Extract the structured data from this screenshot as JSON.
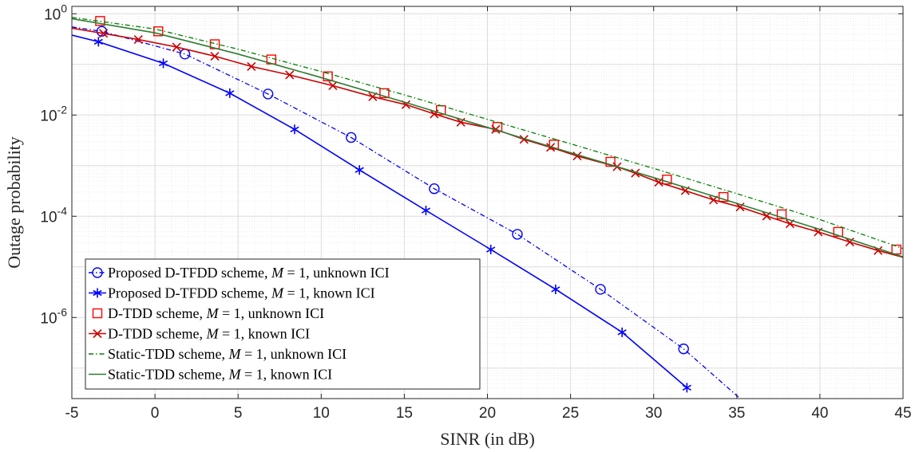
{
  "chart_data": {
    "type": "line",
    "title": "",
    "xlabel": "SINR (in dB)",
    "ylabel": "Outage probability",
    "xlim": [
      -5,
      45
    ],
    "ylim": [
      2.5e-08,
      1.4
    ],
    "yscale": "log",
    "grid": true,
    "minor_grid": true,
    "legend_position": "bottom-left",
    "x_ticks": [
      -5,
      0,
      5,
      10,
      15,
      20,
      25,
      30,
      35,
      40,
      45
    ],
    "x_tick_labels": [
      "-5",
      "0",
      "5",
      "10",
      "15",
      "20",
      "25",
      "30",
      "35",
      "40",
      "45"
    ],
    "y_ticks": [
      {
        "value": 1,
        "base": "10",
        "exp": "0"
      },
      {
        "value": 0.01,
        "base": "10",
        "exp": "-2"
      },
      {
        "value": 0.0001,
        "base": "10",
        "exp": "-4"
      },
      {
        "value": 1e-06,
        "base": "10",
        "exp": "-6"
      }
    ],
    "series": [
      {
        "name": "Proposed D-TFDD scheme, M = 1, unknown ICI",
        "legend_prefix": "Proposed D-TFDD scheme, ",
        "legend_suffix": " = 1, unknown ICI",
        "color": "#0000ff",
        "line_style": "dashdot",
        "marker": "circle",
        "x": [
          -5,
          -3.2,
          1.8,
          6.8,
          11.8,
          16.8,
          21.8,
          26.8,
          31.8,
          35.2
        ],
        "y": [
          0.55,
          0.45,
          0.16,
          0.026,
          0.0036,
          0.00035,
          4.4e-05,
          3.6e-06,
          2.4e-07,
          2.5e-08
        ],
        "marker_x": [
          -3.2,
          1.8,
          6.8,
          11.8,
          16.8,
          21.8,
          26.8,
          31.8
        ]
      },
      {
        "name": "Proposed D-TFDD scheme, M = 1, known ICI",
        "legend_prefix": "Proposed D-TFDD scheme, ",
        "legend_suffix": " = 1, known ICI",
        "color": "#0000ff",
        "line_style": "solid",
        "marker": "asterisk",
        "x": [
          -5,
          -3.4,
          0.5,
          4.5,
          8.4,
          12.3,
          16.3,
          20.2,
          24.1,
          28.1,
          32
        ],
        "y": [
          0.38,
          0.28,
          0.105,
          0.027,
          0.0052,
          0.00082,
          0.00013,
          2.2e-05,
          3.6e-06,
          5.1e-07,
          4.1e-08
        ],
        "marker_x": [
          -3.4,
          0.5,
          4.5,
          8.4,
          12.3,
          16.3,
          20.2,
          24.1,
          28.1,
          32
        ]
      },
      {
        "name": "D-TDD scheme, M = 1, unknown ICI",
        "legend_prefix": "D-TDD scheme, ",
        "legend_suffix": " = 1, unknown ICI",
        "color": "#ff0000",
        "line_style": "none",
        "marker": "square",
        "x": [
          -3.3,
          0.2,
          3.6,
          7.0,
          10.4,
          13.8,
          17.2,
          20.6,
          24.0,
          27.4,
          30.8,
          34.2,
          37.7,
          41.1,
          44.6
        ],
        "y": [
          0.72,
          0.45,
          0.25,
          0.125,
          0.058,
          0.027,
          0.0125,
          0.0058,
          0.0026,
          0.00119,
          0.00053,
          0.00024,
          0.000109,
          4.9e-05,
          2.2e-05
        ]
      },
      {
        "name": "D-TDD scheme, M = 1, known ICI",
        "legend_prefix": "D-TDD scheme, ",
        "legend_suffix": " = 1, known ICI",
        "color": "#cc0000",
        "line_style": "solid",
        "marker": "x",
        "x": [
          -5,
          -3.1,
          -1.0,
          1.3,
          3.6,
          5.8,
          8.1,
          10.7,
          13.1,
          15.1,
          16.8,
          18.4,
          20.5,
          22.2,
          23.8,
          25.4,
          27.8,
          28.9,
          30.3,
          31.9,
          33.6,
          35.2,
          36.8,
          38.2,
          39.9,
          41.8,
          43.5,
          45
        ],
        "y": [
          0.52,
          0.41,
          0.31,
          0.22,
          0.145,
          0.091,
          0.062,
          0.038,
          0.023,
          0.016,
          0.0105,
          0.0072,
          0.0052,
          0.0033,
          0.0023,
          0.00155,
          0.00095,
          0.00071,
          0.00047,
          0.00032,
          0.00021,
          0.000152,
          0.000101,
          7.1e-05,
          4.9e-05,
          3.1e-05,
          2.1e-05,
          1.55e-05
        ],
        "marker_x": [
          -3.1,
          -1.0,
          1.3,
          3.6,
          5.8,
          8.1,
          10.7,
          13.1,
          15.1,
          16.8,
          18.4,
          20.5,
          22.2,
          23.8,
          25.4,
          27.8,
          28.9,
          30.3,
          31.9,
          33.6,
          35.2,
          36.8,
          38.2,
          39.9,
          41.8,
          43.5
        ]
      },
      {
        "name": "Static-TDD scheme, M = 1, unknown ICI",
        "legend_prefix": "Static-TDD scheme, ",
        "legend_suffix": " = 1, unknown ICI",
        "color": "#008000",
        "line_style": "dashdot",
        "marker": "none",
        "x": [
          -5,
          0,
          5,
          10,
          15,
          20,
          25,
          30,
          35,
          40,
          45
        ],
        "y": [
          0.85,
          0.5,
          0.2,
          0.072,
          0.025,
          0.0082,
          0.0027,
          0.00088,
          0.00028,
          8.6e-05,
          2.3e-05
        ]
      },
      {
        "name": "Static-TDD scheme, M = 1, known ICI",
        "legend_prefix": "Static-TDD scheme, ",
        "legend_suffix": " = 1, known ICI",
        "color": "#2e7d32",
        "line_style": "solid",
        "marker": "none",
        "x": [
          -5,
          0,
          5,
          10,
          15,
          20,
          25,
          30,
          35,
          40,
          45
        ],
        "y": [
          0.8,
          0.42,
          0.16,
          0.055,
          0.018,
          0.0057,
          0.0018,
          0.00058,
          0.00018,
          5.5e-05,
          1.58e-05
        ]
      }
    ]
  }
}
